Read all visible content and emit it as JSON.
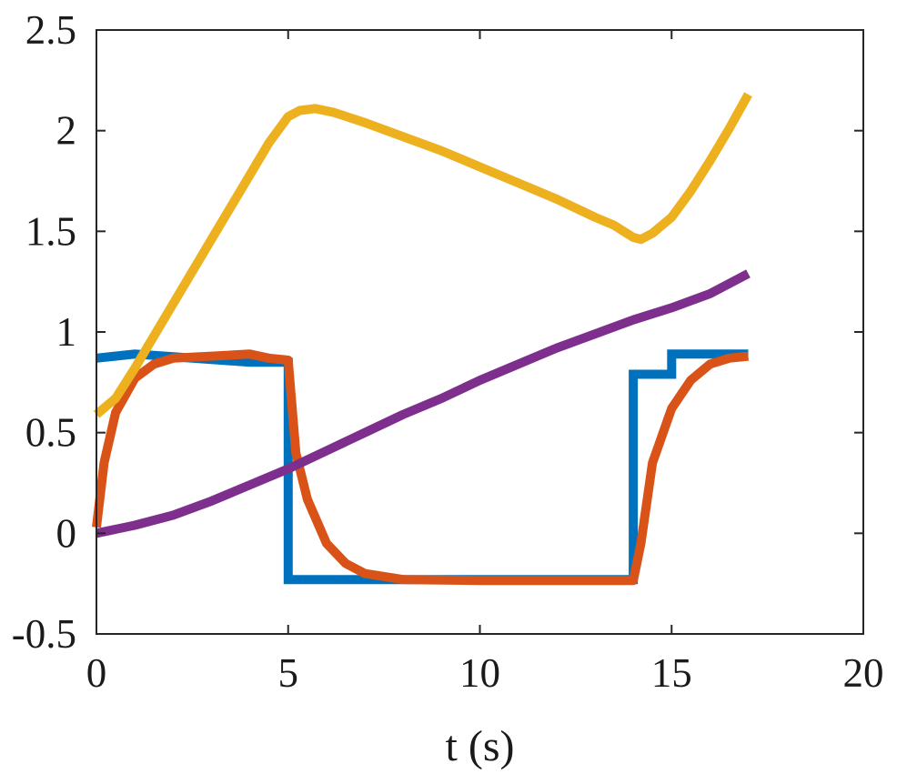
{
  "chart_data": {
    "type": "line",
    "title": "",
    "xlabel": "t (s)",
    "ylabel": "",
    "xlim": [
      0,
      20
    ],
    "ylim": [
      -0.5,
      2.5
    ],
    "xticks": [
      0,
      5,
      10,
      15,
      20
    ],
    "yticks": [
      -0.5,
      0,
      0.5,
      1,
      1.5,
      2,
      2.5
    ],
    "xtick_labels": [
      "0",
      "5",
      "10",
      "15",
      "20"
    ],
    "ytick_labels": [
      "-0.5",
      "0",
      "0.5",
      "1",
      "1.5",
      "2",
      "2.5"
    ],
    "grid": false,
    "legend": "none",
    "series": [
      {
        "color": "#0072BD",
        "step": true,
        "x": [
          0,
          1,
          4,
          5,
          5,
          14,
          14,
          15,
          15,
          17
        ],
        "y": [
          0.87,
          0.89,
          0.85,
          0.85,
          -0.23,
          -0.23,
          0.79,
          0.79,
          0.89,
          0.89
        ]
      },
      {
        "color": "#D95319",
        "step": false,
        "x": [
          0,
          0.2,
          0.5,
          1,
          1.5,
          2,
          3,
          4,
          4.5,
          5,
          5.2,
          5.5,
          6,
          6.5,
          7,
          8,
          10,
          12,
          14,
          14.2,
          14.5,
          15,
          15.5,
          16,
          16.5,
          17
        ],
        "y": [
          0.03,
          0.35,
          0.6,
          0.77,
          0.84,
          0.87,
          0.88,
          0.89,
          0.87,
          0.86,
          0.4,
          0.17,
          -0.05,
          -0.15,
          -0.2,
          -0.23,
          -0.235,
          -0.235,
          -0.235,
          -0.05,
          0.35,
          0.62,
          0.76,
          0.84,
          0.87,
          0.88
        ]
      },
      {
        "color": "#EDB120",
        "step": false,
        "x": [
          0,
          0.5,
          1,
          2,
          3,
          4,
          4.5,
          5,
          5.3,
          5.7,
          6.2,
          7,
          8,
          9,
          10,
          11,
          12,
          13,
          13.5,
          14,
          14.2,
          14.5,
          15,
          15.5,
          16,
          16.5,
          17
        ],
        "y": [
          0.59,
          0.67,
          0.82,
          1.14,
          1.46,
          1.78,
          1.94,
          2.07,
          2.1,
          2.11,
          2.09,
          2.04,
          1.97,
          1.9,
          1.82,
          1.74,
          1.66,
          1.57,
          1.53,
          1.47,
          1.46,
          1.49,
          1.57,
          1.7,
          1.85,
          2.01,
          2.18
        ]
      },
      {
        "color": "#7E2F8E",
        "step": false,
        "x": [
          0,
          1,
          2,
          3,
          4,
          5,
          6,
          7,
          8,
          9,
          10,
          11,
          12,
          13,
          14,
          15,
          16,
          17
        ],
        "y": [
          0.0,
          0.04,
          0.09,
          0.16,
          0.24,
          0.32,
          0.41,
          0.5,
          0.59,
          0.67,
          0.76,
          0.84,
          0.92,
          0.99,
          1.06,
          1.12,
          1.19,
          1.29
        ]
      }
    ]
  }
}
